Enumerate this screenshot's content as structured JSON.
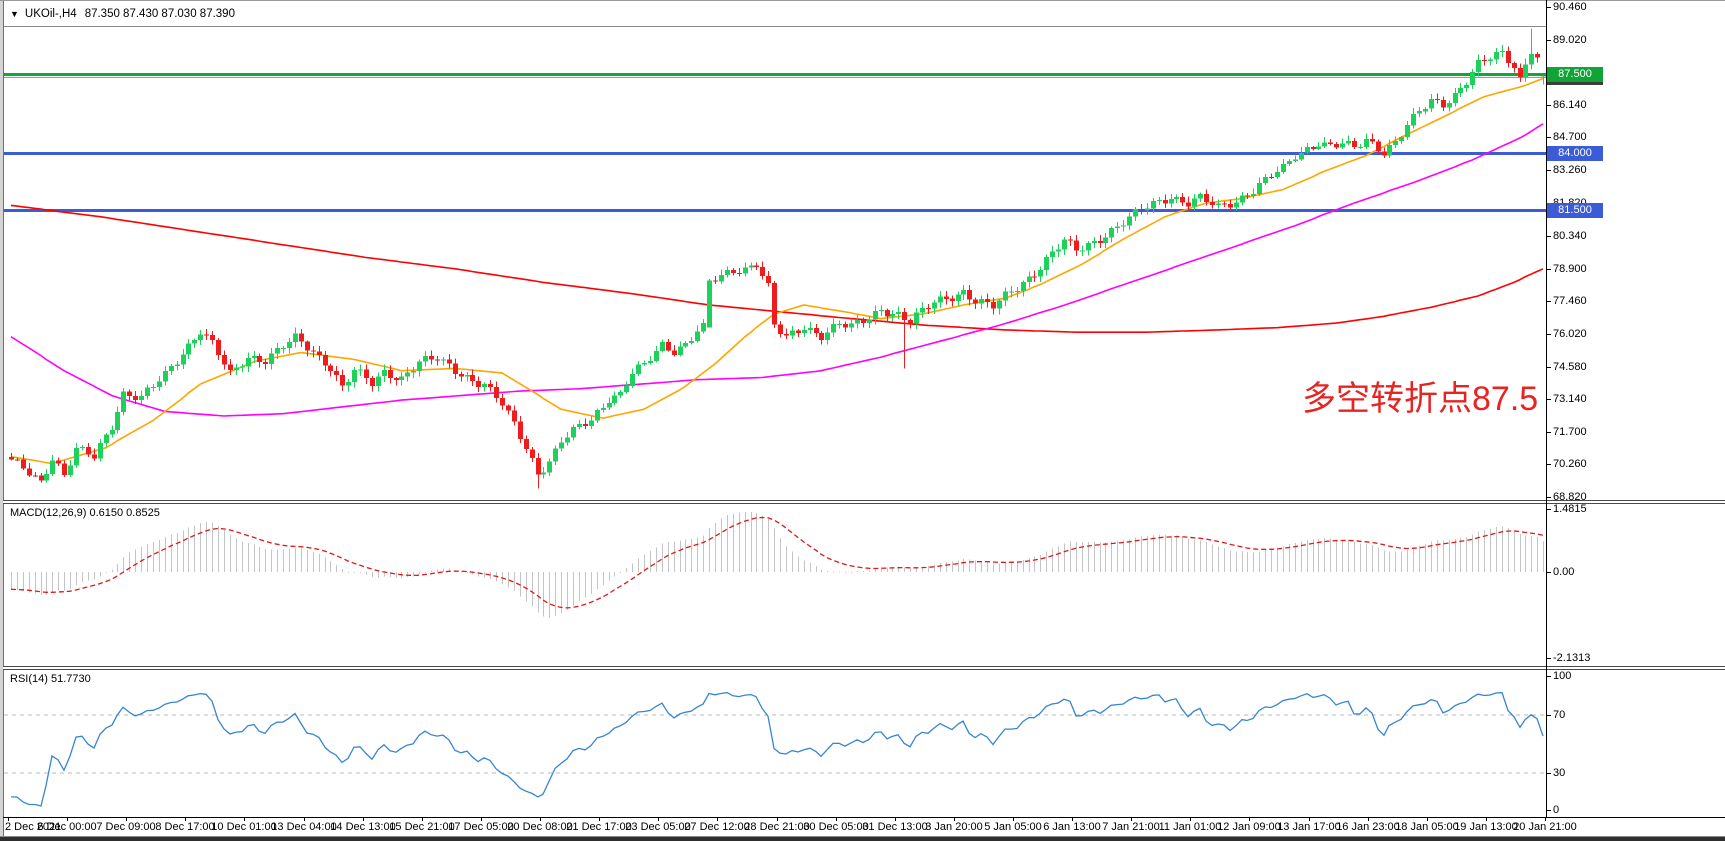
{
  "window": {
    "dropdown_icon": "▼",
    "symbol": "UKOil-,H4",
    "ohlc_readout": "87.350 87.430 87.030 87.390"
  },
  "annotation": {
    "text": "多空转折点87.5",
    "color": "#e62424"
  },
  "colors": {
    "bull": "#1ed15c",
    "bear": "#ee1c1c",
    "ma_fast": "#ffa500",
    "ma_mid": "#ff00ff",
    "ma_slow": "#ff0000",
    "level_green": "#11a63a",
    "level_blue": "#3c5bd7",
    "current_line": "#9a9a9a",
    "macd_bar": "#c4c4c4",
    "macd_signal": "#e01818",
    "rsi_line": "#3585d3",
    "rsi_level": "#b8b8b8",
    "badge_green": "#10a336",
    "badge_blue": "#3c5bd7",
    "badge_dark": "#3d3d3d"
  },
  "price_axis": {
    "labels": [
      "90.460",
      "89.020",
      "86.140",
      "84.700",
      "83.260",
      "81.820",
      "80.340",
      "78.900",
      "77.460",
      "76.020",
      "74.580",
      "73.140",
      "71.700",
      "70.260",
      "68.820"
    ],
    "badges": [
      {
        "text": "87.500",
        "price": 87.5,
        "type": "green"
      },
      {
        "text": "87.390",
        "price": 87.39,
        "type": "dark"
      },
      {
        "text": "84.000",
        "price": 84.0,
        "type": "blue"
      },
      {
        "text": "81.500",
        "price": 81.5,
        "type": "blue"
      }
    ]
  },
  "macd_panel": {
    "label": "MACD(12,26,9) 0.6150 0.8525",
    "axis_labels": [
      {
        "text": "1.4815",
        "v": 1.4815
      },
      {
        "text": "0.00",
        "v": 0
      },
      {
        "text": "-2.1313",
        "v": -2.1313
      }
    ]
  },
  "rsi_panel": {
    "label": "RSI(14) 51.7730",
    "axis_labels": [
      {
        "text": "100",
        "v": 100
      },
      {
        "text": "70",
        "v": 70
      },
      {
        "text": "30",
        "v": 30
      },
      {
        "text": "0",
        "v": 0
      }
    ],
    "dashed_levels": [
      70,
      30
    ]
  },
  "time_axis": {
    "labels": [
      "2 Dec 2021",
      "6 Dec 00:00",
      "7 Dec 09:00",
      "8 Dec 17:00",
      "10 Dec 01:00",
      "13 Dec 04:00",
      "14 Dec 13:00",
      "15 Dec 21:00",
      "17 Dec 05:00",
      "20 Dec 08:00",
      "21 Dec 17:00",
      "23 Dec 05:00",
      "27 Dec 12:00",
      "28 Dec 21:00",
      "30 Dec 05:00",
      "31 Dec 13:00",
      "3 Jan 20:00",
      "5 Jan 05:00",
      "6 Jan 13:00",
      "7 Jan 21:00",
      "11 Jan 01:00",
      "12 Jan 09:00",
      "13 Jan 17:00",
      "16 Jan 23:00",
      "18 Jan 05:00",
      "19 Jan 13:00",
      "20 Jan 21:00"
    ]
  },
  "chart_data": {
    "type": "candlestick",
    "symbol": "UKOil-,H4",
    "timeframe": "H4",
    "bars": 260,
    "price_axis_range": [
      68.82,
      90.46
    ],
    "levels": [
      {
        "price": 87.5,
        "color_key": "level_green",
        "width": 3
      },
      {
        "price": 84.0,
        "color_key": "level_blue",
        "width": 3
      },
      {
        "price": 81.5,
        "color_key": "level_blue",
        "width": 3
      }
    ],
    "current_price": 87.39,
    "close_anchors": [
      [
        0,
        70.4
      ],
      [
        3,
        69.9
      ],
      [
        5,
        69.5
      ],
      [
        7,
        70.6
      ],
      [
        9,
        69.8
      ],
      [
        11,
        70.9
      ],
      [
        14,
        70.6
      ],
      [
        17,
        72.0
      ],
      [
        19,
        73.4
      ],
      [
        22,
        73.2
      ],
      [
        26,
        74.2
      ],
      [
        29,
        75.2
      ],
      [
        32,
        76.2
      ],
      [
        34,
        75.6
      ],
      [
        37,
        74.2
      ],
      [
        40,
        75.0
      ],
      [
        43,
        74.9
      ],
      [
        46,
        75.5
      ],
      [
        48,
        75.8
      ],
      [
        51,
        75.2
      ],
      [
        54,
        74.6
      ],
      [
        56,
        73.7
      ],
      [
        58,
        74.4
      ],
      [
        61,
        73.8
      ],
      [
        63,
        74.3
      ],
      [
        66,
        74.1
      ],
      [
        69,
        74.8
      ],
      [
        72,
        74.9
      ],
      [
        75,
        74.4
      ],
      [
        78,
        74.0
      ],
      [
        80,
        73.8
      ],
      [
        83,
        72.9
      ],
      [
        85,
        72.0
      ],
      [
        87,
        71.0
      ],
      [
        89,
        69.9
      ],
      [
        91,
        70.4
      ],
      [
        93,
        71.3
      ],
      [
        96,
        71.9
      ],
      [
        98,
        72.2
      ],
      [
        101,
        73.2
      ],
      [
        103,
        73.4
      ],
      [
        105,
        74.3
      ],
      [
        107,
        74.6
      ],
      [
        110,
        75.5
      ],
      [
        112,
        75.3
      ],
      [
        114,
        75.6
      ],
      [
        116,
        76.2
      ],
      [
        117,
        76.3
      ],
      [
        118,
        78.3
      ],
      [
        120,
        78.5
      ],
      [
        122,
        78.8
      ],
      [
        124,
        78.9
      ],
      [
        126,
        79.2
      ],
      [
        128,
        78.1
      ],
      [
        129,
        76.4
      ],
      [
        131,
        75.8
      ],
      [
        134,
        76.3
      ],
      [
        137,
        76.0
      ],
      [
        140,
        76.5
      ],
      [
        142,
        76.3
      ],
      [
        145,
        76.7
      ],
      [
        147,
        77.1
      ],
      [
        150,
        76.9
      ],
      [
        152,
        76.6
      ],
      [
        154,
        77.0
      ],
      [
        156,
        77.4
      ],
      [
        159,
        77.7
      ],
      [
        161,
        77.9
      ],
      [
        163,
        77.5
      ],
      [
        166,
        77.2
      ],
      [
        169,
        77.9
      ],
      [
        171,
        78.3
      ],
      [
        174,
        79.0
      ],
      [
        176,
        79.6
      ],
      [
        178,
        80.1
      ],
      [
        180,
        79.7
      ],
      [
        183,
        80.1
      ],
      [
        186,
        80.6
      ],
      [
        189,
        81.1
      ],
      [
        191,
        81.5
      ],
      [
        194,
        81.9
      ],
      [
        196,
        82.1
      ],
      [
        199,
        81.8
      ],
      [
        201,
        82.0
      ],
      [
        204,
        81.6
      ],
      [
        207,
        81.9
      ],
      [
        210,
        82.4
      ],
      [
        213,
        83.0
      ],
      [
        215,
        83.3
      ],
      [
        217,
        83.9
      ],
      [
        219,
        84.2
      ],
      [
        221,
        84.5
      ],
      [
        223,
        84.3
      ],
      [
        225,
        84.4
      ],
      [
        227,
        84.2
      ],
      [
        229,
        84.6
      ],
      [
        232,
        84.1
      ],
      [
        234,
        84.5
      ],
      [
        236,
        85.2
      ],
      [
        238,
        85.8
      ],
      [
        240,
        86.3
      ],
      [
        242,
        86.2
      ],
      [
        244,
        86.6
      ],
      [
        246,
        87.2
      ],
      [
        248,
        87.9
      ],
      [
        250,
        88.2
      ],
      [
        252,
        88.4
      ],
      [
        254,
        87.9
      ],
      [
        255,
        87.3
      ],
      [
        256,
        88.0
      ],
      [
        257,
        88.6
      ],
      [
        258,
        88.2
      ],
      [
        259,
        87.4
      ]
    ],
    "overrides": {
      "89": {
        "l": 69.2
      },
      "118": {
        "o": 76.3
      },
      "151": {
        "l": 74.5
      },
      "257": {
        "h": 89.5
      },
      "259": {
        "o": 87.35,
        "h": 87.43,
        "l": 87.03,
        "c": 87.39
      }
    },
    "ma_fast_anchors": [
      [
        0,
        70.6
      ],
      [
        7,
        70.3
      ],
      [
        16,
        71.0
      ],
      [
        24,
        72.2
      ],
      [
        32,
        73.8
      ],
      [
        41,
        74.8
      ],
      [
        49,
        75.2
      ],
      [
        58,
        74.9
      ],
      [
        66,
        74.4
      ],
      [
        75,
        74.5
      ],
      [
        83,
        74.3
      ],
      [
        88,
        73.5
      ],
      [
        93,
        72.7
      ],
      [
        100,
        72.3
      ],
      [
        107,
        72.7
      ],
      [
        114,
        73.7
      ],
      [
        119,
        74.7
      ],
      [
        124,
        75.9
      ],
      [
        129,
        76.9
      ],
      [
        134,
        77.3
      ],
      [
        141,
        77.0
      ],
      [
        147,
        76.7
      ],
      [
        154,
        76.9
      ],
      [
        161,
        77.3
      ],
      [
        168,
        77.6
      ],
      [
        174,
        78.2
      ],
      [
        181,
        79.1
      ],
      [
        188,
        80.2
      ],
      [
        195,
        81.2
      ],
      [
        202,
        81.8
      ],
      [
        208,
        82.0
      ],
      [
        215,
        82.4
      ],
      [
        222,
        83.2
      ],
      [
        229,
        83.9
      ],
      [
        235,
        84.7
      ],
      [
        242,
        85.6
      ],
      [
        249,
        86.5
      ],
      [
        256,
        87.0
      ],
      [
        259,
        87.3
      ]
    ],
    "ma_mid_anchors": [
      [
        0,
        75.9
      ],
      [
        9,
        74.4
      ],
      [
        17,
        73.3
      ],
      [
        26,
        72.6
      ],
      [
        36,
        72.4
      ],
      [
        46,
        72.5
      ],
      [
        56,
        72.8
      ],
      [
        66,
        73.1
      ],
      [
        76,
        73.3
      ],
      [
        86,
        73.5
      ],
      [
        96,
        73.6
      ],
      [
        106,
        73.8
      ],
      [
        116,
        74.0
      ],
      [
        127,
        74.1
      ],
      [
        137,
        74.4
      ],
      [
        147,
        75.0
      ],
      [
        157,
        75.7
      ],
      [
        167,
        76.4
      ],
      [
        177,
        77.2
      ],
      [
        187,
        78.1
      ],
      [
        197,
        79.0
      ],
      [
        207,
        79.9
      ],
      [
        217,
        80.8
      ],
      [
        227,
        81.8
      ],
      [
        237,
        82.7
      ],
      [
        247,
        83.7
      ],
      [
        256,
        84.8
      ],
      [
        259,
        85.3
      ]
    ],
    "ma_slow_anchors": [
      [
        0,
        81.7
      ],
      [
        15,
        81.2
      ],
      [
        30,
        80.6
      ],
      [
        45,
        80.0
      ],
      [
        60,
        79.4
      ],
      [
        75,
        78.9
      ],
      [
        90,
        78.3
      ],
      [
        105,
        77.8
      ],
      [
        118,
        77.3
      ],
      [
        130,
        77.0
      ],
      [
        142,
        76.7
      ],
      [
        155,
        76.4
      ],
      [
        168,
        76.2
      ],
      [
        180,
        76.1
      ],
      [
        192,
        76.1
      ],
      [
        204,
        76.2
      ],
      [
        214,
        76.3
      ],
      [
        224,
        76.5
      ],
      [
        232,
        76.8
      ],
      [
        240,
        77.2
      ],
      [
        248,
        77.7
      ],
      [
        254,
        78.3
      ],
      [
        259,
        78.9
      ]
    ],
    "macd": {
      "fast": 12,
      "slow": 26,
      "signal": 9,
      "last_macd": 0.615,
      "last_signal": 0.8525,
      "axis_max": 1.4815,
      "axis_min": -2.1313
    },
    "rsi": {
      "period": 14,
      "last": 51.773,
      "levels": [
        70,
        30
      ],
      "axis_max": 100,
      "axis_min": 0
    },
    "indicator_seed": {
      "start": 73.2,
      "bars": 40
    }
  }
}
